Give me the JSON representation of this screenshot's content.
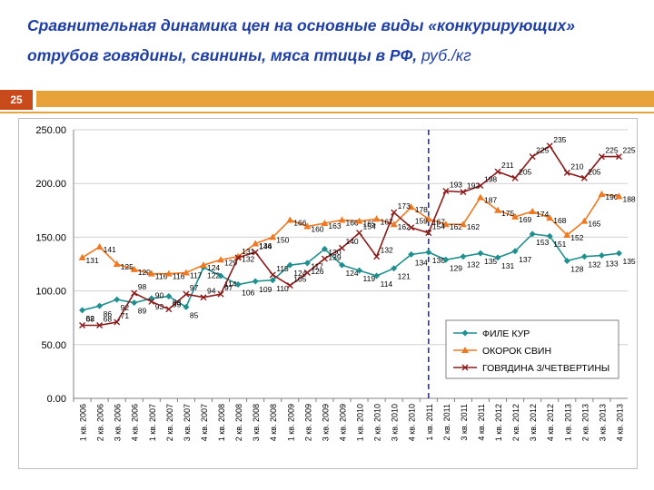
{
  "slide": {
    "title_line1": "Сравнительная динамика цен на основные виды «конкурирующих»",
    "title_line2": "отрубов говядины, свинины, мяса птицы в РФ,",
    "title_unit": " руб./кг",
    "page_number": "25"
  },
  "colors": {
    "title": "#1f3fa8",
    "accent_bar": "#e8a23a",
    "page_badge": "#c8491a",
    "fillet": "#1f8f8f",
    "pork": "#f07820",
    "beef": "#8b1a1a",
    "marker_line": "#2030c8"
  },
  "chart_data": {
    "type": "line",
    "title": "",
    "xlabel": "",
    "ylabel": "",
    "ylim": [
      0,
      250
    ],
    "yticks": [
      "0.00",
      "50.00",
      "100.00",
      "150.00",
      "200.00",
      "250.00"
    ],
    "legend_position": "bottom-right",
    "vertical_marker_category": "1 кв. 2011",
    "categories": [
      "1 кв. 2006",
      "2 кв. 2006",
      "3 кв. 2006",
      "4 кв. 2006",
      "1 кв. 2007",
      "2 кв. 2007",
      "3 кв. 2007",
      "4 кв. 2007",
      "1 кв. 2008",
      "2 кв. 2008",
      "3 кв. 2008",
      "4 кв. 2008",
      "1 кв. 2009",
      "2 кв. 2009",
      "3 кв. 2009",
      "4 кв. 2009",
      "1 кв. 2010",
      "2 кв. 2010",
      "3 кв. 2010",
      "4 кв. 2010",
      "1 кв. 2011",
      "2 кв. 2011",
      "3 кв. 2011",
      "4 кв. 2011",
      "1 кв. 2012",
      "2 кв. 2012",
      "3 кв. 2012",
      "4 кв. 2012",
      "1 кв. 2013",
      "2 кв. 2013",
      "3 кв. 2013",
      "4 кв. 2013"
    ],
    "series": [
      {
        "name": "ФИЛЕ КУР",
        "color_key": "fillet",
        "marker": "diamond",
        "values": [
          82,
          86,
          92,
          89,
          93,
          95,
          85,
          122,
          114,
          106,
          109,
          110,
          124,
          126,
          139,
          124,
          119,
          114,
          121,
          134,
          136,
          129,
          132,
          135,
          131,
          137,
          153,
          151,
          128,
          132,
          133,
          135
        ]
      },
      {
        "name": "ОКОРОК СВИН",
        "color_key": "pork",
        "marker": "triangle",
        "values": [
          131,
          141,
          125,
          120,
          116,
          116,
          117,
          124,
          129,
          132,
          144,
          150,
          166,
          160,
          163,
          166,
          165,
          167,
          162,
          178,
          167,
          162,
          162,
          187,
          175,
          169,
          174,
          168,
          152,
          165,
          190,
          188
        ]
      },
      {
        "name": "ГОВЯДИНА 3/ЧЕТВЕРТИНЫ",
        "color_key": "beef",
        "marker": "x",
        "values": [
          68,
          68,
          71,
          98,
          90,
          83,
          97,
          94,
          97,
          131,
          136,
          115,
          105,
          117,
          130,
          140,
          154,
          132,
          173,
          159,
          154,
          193,
          192,
          198,
          211,
          205,
          225,
          235,
          210,
          205,
          225,
          225
        ]
      }
    ],
    "labels_displayed": {
      "ФИЛЕ КУР": [
        "82",
        "86",
        "92",
        "89",
        "93",
        "95",
        "85",
        "122",
        "114",
        "106",
        "109",
        "110",
        "124",
        "126",
        "139",
        "124",
        "119",
        "114",
        "121",
        "134",
        "136",
        "129",
        "132",
        "135",
        "131",
        "137",
        "153",
        "151",
        "128",
        "132",
        "133",
        "135"
      ],
      "ОКОРОК СВИН": [
        "131",
        "141",
        "125",
        "120",
        "116",
        "116",
        "117",
        "124",
        "129",
        "132",
        "144",
        "150",
        "166",
        "160",
        "163",
        "166",
        "165",
        "167",
        "162",
        "178",
        "167",
        "162",
        "162",
        "187",
        "175",
        "169",
        "174",
        "168",
        "152",
        "165",
        "190",
        "188"
      ],
      "ГОВЯДИНА 3/ЧЕТВЕРТИНЫ": [
        "68",
        "68",
        "71",
        "98",
        "90",
        "83",
        "97",
        "94",
        "97",
        "131",
        "136",
        "115",
        "105",
        "117",
        "130",
        "140",
        "154",
        "132",
        "173",
        "159",
        "154",
        "193",
        "192",
        "198",
        "211",
        "205",
        "225",
        "235",
        "210",
        "205",
        "225",
        "225"
      ]
    }
  }
}
